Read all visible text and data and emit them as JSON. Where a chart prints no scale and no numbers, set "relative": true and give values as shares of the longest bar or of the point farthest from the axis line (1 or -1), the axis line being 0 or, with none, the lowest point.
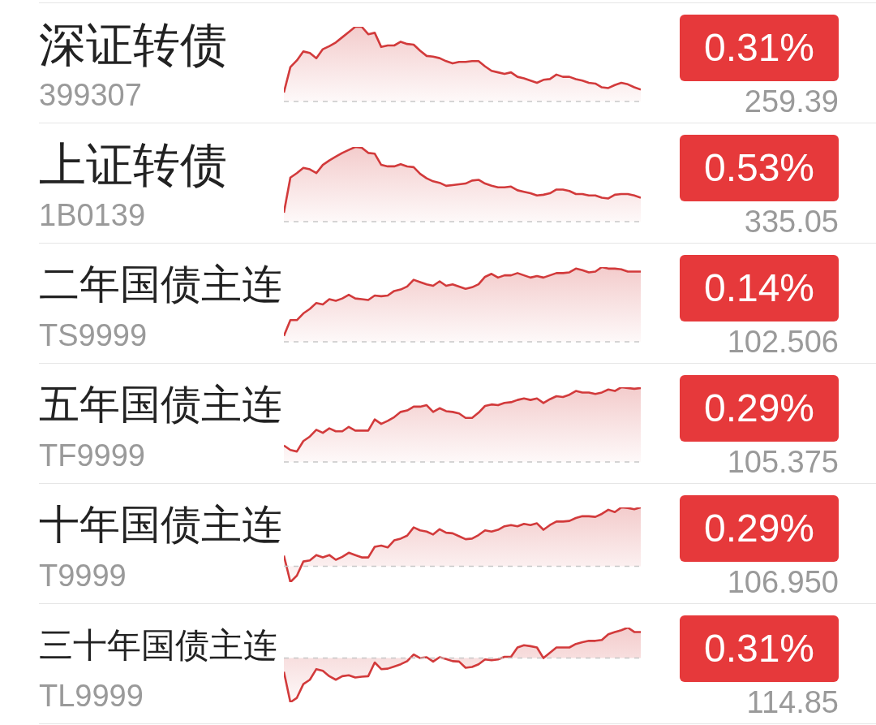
{
  "chart_data": [
    {
      "type": "area",
      "title": "深证转债",
      "subtitle": "399307",
      "annotations": [
        "0.31%",
        "259.39"
      ],
      "relative": true,
      "tick_labels": false,
      "color": "#d23a3b",
      "categories": [
        null,
        null,
        null,
        null,
        null,
        null,
        null,
        null,
        null,
        null,
        null,
        null,
        null,
        null,
        null,
        null,
        null,
        null,
        null,
        null,
        null,
        null,
        null,
        null,
        null,
        null,
        null,
        null,
        null,
        null,
        null,
        null,
        null,
        null,
        null,
        null,
        null,
        null,
        null,
        null,
        null,
        null,
        null,
        null,
        null,
        null,
        null,
        null,
        null,
        null,
        null,
        null,
        null,
        null,
        null,
        null
      ],
      "values": [
        0.12,
        0.46,
        0.55,
        0.67,
        0.65,
        0.58,
        0.7,
        0.74,
        0.79,
        0.86,
        0.93,
        1.0,
        1.0,
        0.9,
        0.92,
        0.73,
        0.75,
        0.75,
        0.8,
        0.77,
        0.76,
        0.68,
        0.61,
        0.6,
        0.58,
        0.54,
        0.51,
        0.53,
        0.53,
        0.54,
        0.54,
        0.47,
        0.41,
        0.39,
        0.37,
        0.39,
        0.33,
        0.31,
        0.28,
        0.25,
        0.29,
        0.3,
        0.36,
        0.33,
        0.33,
        0.3,
        0.28,
        0.25,
        0.24,
        0.19,
        0.18,
        0.22,
        0.25,
        0.23,
        0.19,
        0.16
      ],
      "ref_lines": [
        {
          "axis": "y",
          "value": 0,
          "color": "#c8c8c8",
          "line_style": "dashed"
        }
      ]
    },
    {
      "type": "area",
      "title": "上证转债",
      "subtitle": "1B0139",
      "annotations": [
        "0.53%",
        "335.05"
      ],
      "relative": true,
      "tick_labels": false,
      "color": "#d23a3b",
      "categories": [
        null,
        null,
        null,
        null,
        null,
        null,
        null,
        null,
        null,
        null,
        null,
        null,
        null,
        null,
        null,
        null,
        null,
        null,
        null,
        null,
        null,
        null,
        null,
        null,
        null,
        null,
        null,
        null,
        null,
        null,
        null,
        null,
        null,
        null,
        null,
        null,
        null,
        null,
        null,
        null,
        null,
        null,
        null,
        null,
        null,
        null,
        null,
        null,
        null,
        null,
        null,
        null,
        null,
        null,
        null,
        null
      ],
      "values": [
        0.12,
        0.59,
        0.65,
        0.72,
        0.7,
        0.65,
        0.76,
        0.82,
        0.87,
        0.92,
        0.96,
        1.0,
        0.99,
        0.92,
        0.91,
        0.76,
        0.74,
        0.74,
        0.77,
        0.74,
        0.73,
        0.64,
        0.58,
        0.54,
        0.52,
        0.48,
        0.49,
        0.5,
        0.51,
        0.55,
        0.56,
        0.51,
        0.48,
        0.46,
        0.46,
        0.47,
        0.42,
        0.4,
        0.38,
        0.35,
        0.36,
        0.38,
        0.43,
        0.43,
        0.41,
        0.37,
        0.37,
        0.35,
        0.35,
        0.32,
        0.31,
        0.36,
        0.37,
        0.37,
        0.35,
        0.32
      ],
      "ref_lines": [
        {
          "axis": "y",
          "value": 0,
          "color": "#c8c8c8",
          "line_style": "dashed"
        }
      ]
    },
    {
      "type": "area",
      "title": "二年国债主连",
      "subtitle": "TS9999",
      "annotations": [
        "0.14%",
        "102.506"
      ],
      "relative": true,
      "tick_labels": false,
      "color": "#d23a3b",
      "categories": [
        null,
        null,
        null,
        null,
        null,
        null,
        null,
        null,
        null,
        null,
        null,
        null,
        null,
        null,
        null,
        null,
        null,
        null,
        null,
        null,
        null,
        null,
        null,
        null,
        null,
        null,
        null,
        null,
        null,
        null,
        null,
        null,
        null,
        null,
        null,
        null,
        null,
        null,
        null,
        null,
        null,
        null,
        null,
        null,
        null,
        null,
        null,
        null,
        null,
        null,
        null,
        null,
        null,
        null,
        null,
        null
      ],
      "values": [
        0.08,
        0.29,
        0.29,
        0.38,
        0.44,
        0.52,
        0.5,
        0.57,
        0.55,
        0.58,
        0.63,
        0.58,
        0.57,
        0.56,
        0.62,
        0.61,
        0.62,
        0.68,
        0.7,
        0.74,
        0.83,
        0.8,
        0.77,
        0.75,
        0.81,
        0.75,
        0.77,
        0.74,
        0.71,
        0.73,
        0.77,
        0.87,
        0.91,
        0.86,
        0.89,
        0.89,
        0.92,
        0.89,
        0.86,
        0.88,
        0.86,
        0.89,
        0.92,
        0.92,
        0.93,
        0.98,
        0.96,
        0.93,
        0.94,
        1.0,
        0.98,
        0.98,
        0.97,
        0.94,
        0.94,
        0.94
      ],
      "ref_lines": [
        {
          "axis": "y",
          "value": 0,
          "color": "#c8c8c8",
          "line_style": "dashed"
        }
      ]
    },
    {
      "type": "area",
      "title": "五年国债主连",
      "subtitle": "TF9999",
      "annotations": [
        "0.29%",
        "105.375"
      ],
      "relative": true,
      "tick_labels": false,
      "color": "#d23a3b",
      "categories": [
        null,
        null,
        null,
        null,
        null,
        null,
        null,
        null,
        null,
        null,
        null,
        null,
        null,
        null,
        null,
        null,
        null,
        null,
        null,
        null,
        null,
        null,
        null,
        null,
        null,
        null,
        null,
        null,
        null,
        null,
        null,
        null,
        null,
        null,
        null,
        null,
        null,
        null,
        null,
        null,
        null,
        null,
        null,
        null,
        null,
        null,
        null,
        null,
        null,
        null,
        null,
        null,
        null,
        null,
        null,
        null
      ],
      "values": [
        0.22,
        0.16,
        0.14,
        0.28,
        0.34,
        0.43,
        0.39,
        0.45,
        0.41,
        0.41,
        0.47,
        0.42,
        0.42,
        0.42,
        0.57,
        0.51,
        0.55,
        0.6,
        0.67,
        0.69,
        0.74,
        0.74,
        0.76,
        0.67,
        0.72,
        0.68,
        0.67,
        0.65,
        0.59,
        0.59,
        0.66,
        0.75,
        0.77,
        0.76,
        0.79,
        0.8,
        0.83,
        0.85,
        0.83,
        0.85,
        0.79,
        0.84,
        0.88,
        0.87,
        0.9,
        0.95,
        0.93,
        0.93,
        0.91,
        0.93,
        0.97,
        0.95,
        1.0,
        0.99,
        0.98,
        0.99
      ],
      "ref_lines": [
        {
          "axis": "y",
          "value": 0,
          "color": "#c8c8c8",
          "line_style": "dashed"
        }
      ]
    },
    {
      "type": "area",
      "title": "十年国债主连",
      "subtitle": "T9999",
      "annotations": [
        "0.29%",
        "106.950"
      ],
      "relative": true,
      "tick_labels": false,
      "color": "#d23a3b",
      "categories": [
        null,
        null,
        null,
        null,
        null,
        null,
        null,
        null,
        null,
        null,
        null,
        null,
        null,
        null,
        null,
        null,
        null,
        null,
        null,
        null,
        null,
        null,
        null,
        null,
        null,
        null,
        null,
        null,
        null,
        null,
        null,
        null,
        null,
        null,
        null,
        null,
        null,
        null,
        null,
        null,
        null,
        null,
        null,
        null,
        null,
        null,
        null,
        null,
        null,
        null,
        null,
        null,
        null,
        null,
        null,
        null
      ],
      "values": [
        0.18,
        -0.27,
        -0.16,
        0.08,
        0.1,
        0.19,
        0.15,
        0.19,
        0.11,
        0.16,
        0.23,
        0.19,
        0.15,
        0.15,
        0.33,
        0.35,
        0.32,
        0.44,
        0.47,
        0.52,
        0.66,
        0.61,
        0.59,
        0.54,
        0.63,
        0.57,
        0.56,
        0.51,
        0.46,
        0.47,
        0.53,
        0.61,
        0.59,
        0.62,
        0.68,
        0.7,
        0.68,
        0.72,
        0.7,
        0.73,
        0.62,
        0.7,
        0.76,
        0.76,
        0.77,
        0.82,
        0.85,
        0.85,
        0.84,
        0.89,
        0.96,
        0.92,
        1.0,
        0.99,
        0.97,
        1.0
      ],
      "ref_lines": [
        {
          "axis": "y",
          "value": 0,
          "color": "#c8c8c8",
          "line_style": "dashed"
        }
      ]
    },
    {
      "type": "area",
      "title": "三十年国债主连",
      "subtitle": "TL9999",
      "annotations": [
        "0.31%",
        "114.85"
      ],
      "relative": true,
      "tick_labels": false,
      "color": "#d23a3b",
      "categories": [
        null,
        null,
        null,
        null,
        null,
        null,
        null,
        null,
        null,
        null,
        null,
        null,
        null,
        null,
        null,
        null,
        null,
        null,
        null,
        null,
        null,
        null,
        null,
        null,
        null,
        null,
        null,
        null,
        null,
        null,
        null,
        null,
        null,
        null,
        null,
        null,
        null,
        null,
        null,
        null,
        null,
        null,
        null,
        null,
        null,
        null,
        null,
        null,
        null,
        null,
        null,
        null,
        null,
        null,
        null,
        null
      ],
      "values": [
        -0.31,
        -1.0,
        -0.9,
        -0.59,
        -0.49,
        -0.25,
        -0.29,
        -0.41,
        -0.49,
        -0.41,
        -0.39,
        -0.44,
        -0.42,
        -0.41,
        -0.1,
        -0.25,
        -0.24,
        -0.19,
        -0.14,
        -0.07,
        0.08,
        0,
        0.02,
        -0.08,
        0.02,
        -0.02,
        -0.07,
        -0.08,
        -0.22,
        -0.2,
        -0.14,
        -0.03,
        -0.05,
        -0.03,
        0.03,
        0.03,
        0.24,
        0.29,
        0.27,
        0.24,
        0,
        0.12,
        0.24,
        0.24,
        0.24,
        0.32,
        0.36,
        0.39,
        0.39,
        0.41,
        0.54,
        0.59,
        0.63,
        0.69,
        0.59,
        0.59
      ],
      "ref_lines": [
        {
          "axis": "y",
          "value": 0,
          "color": "#c8c8c8",
          "line_style": "dashed"
        }
      ]
    }
  ]
}
